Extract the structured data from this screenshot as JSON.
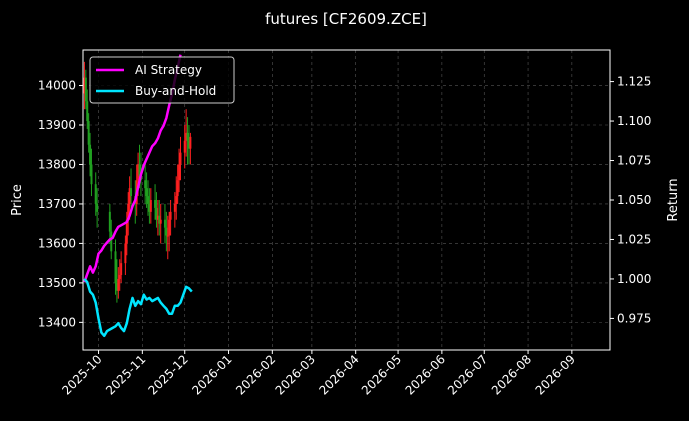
{
  "chart_data": {
    "type": "line",
    "title": "futures [CF2609.ZCE]",
    "xlabel": "",
    "ylabel_left": "Price",
    "ylabel_right": "Return",
    "x_ticks": [
      "2025-10",
      "2025-11",
      "2025-12",
      "2026-01",
      "2026-02",
      "2026-03",
      "2026-04",
      "2026-05",
      "2026-06",
      "2026-07",
      "2026-08",
      "2026-09"
    ],
    "xlim": [
      "2025-09-20",
      "2026-09-28"
    ],
    "ylim_price": [
      13330,
      14090
    ],
    "ylim_return": [
      0.955,
      1.145
    ],
    "y_ticks_price": [
      "13400",
      "13500",
      "13600",
      "13700",
      "13800",
      "13900",
      "14000"
    ],
    "y_ticks_return": [
      "0.975",
      "1.000",
      "1.025",
      "1.050",
      "1.075",
      "1.100",
      "1.125"
    ],
    "grid": true,
    "legend_position": "top-left",
    "colors": {
      "background": "#000000",
      "up": "#ff2020",
      "down": "#20a020",
      "ai_strategy": "#ff00ff",
      "buy_and_hold": "#00e5ff",
      "grid": "#555555"
    },
    "series": [
      {
        "name": "AI Strategy",
        "axis": "right",
        "x": [
          "2025-09-21",
          "2025-09-23",
          "2025-09-25",
          "2025-09-27",
          "2025-09-29",
          "2025-10-01",
          "2025-10-03",
          "2025-10-05",
          "2025-10-07",
          "2025-10-09",
          "2025-10-11",
          "2025-10-13",
          "2025-10-15",
          "2025-10-17",
          "2025-10-19",
          "2025-10-21",
          "2025-10-23",
          "2025-10-25",
          "2025-10-27",
          "2025-10-29",
          "2025-10-31",
          "2025-11-02",
          "2025-11-04",
          "2025-11-06",
          "2025-11-08",
          "2025-11-10",
          "2025-11-12",
          "2025-11-14",
          "2025-11-16",
          "2025-11-18",
          "2025-11-20",
          "2025-11-22",
          "2025-11-24",
          "2025-11-26",
          "2025-11-28"
        ],
        "values": [
          0.998,
          1.003,
          1.008,
          1.004,
          1.008,
          1.016,
          1.018,
          1.021,
          1.023,
          1.025,
          1.026,
          1.03,
          1.033,
          1.034,
          1.035,
          1.036,
          1.04,
          1.046,
          1.05,
          1.058,
          1.066,
          1.072,
          1.076,
          1.08,
          1.084,
          1.086,
          1.089,
          1.094,
          1.097,
          1.102,
          1.11,
          1.117,
          1.126,
          1.134,
          1.142
        ]
      },
      {
        "name": "Buy-and-Hold",
        "axis": "right",
        "x": [
          "2025-09-21",
          "2025-09-23",
          "2025-09-25",
          "2025-09-27",
          "2025-09-29",
          "2025-10-01",
          "2025-10-03",
          "2025-10-05",
          "2025-10-07",
          "2025-10-09",
          "2025-10-11",
          "2025-10-13",
          "2025-10-15",
          "2025-10-17",
          "2025-10-19",
          "2025-10-21",
          "2025-10-23",
          "2025-10-25",
          "2025-10-27",
          "2025-10-29",
          "2025-10-31",
          "2025-11-02",
          "2025-11-04",
          "2025-11-06",
          "2025-11-08",
          "2025-11-10",
          "2025-11-12",
          "2025-11-14",
          "2025-11-16",
          "2025-11-18",
          "2025-11-20",
          "2025-11-22",
          "2025-11-24",
          "2025-11-26",
          "2025-11-28",
          "2025-11-30",
          "2025-12-02",
          "2025-12-04",
          "2025-12-06"
        ],
        "values": [
          1.0,
          0.998,
          0.992,
          0.99,
          0.985,
          0.975,
          0.966,
          0.964,
          0.967,
          0.968,
          0.969,
          0.97,
          0.972,
          0.969,
          0.967,
          0.972,
          0.981,
          0.988,
          0.983,
          0.986,
          0.984,
          0.99,
          0.987,
          0.988,
          0.986,
          0.987,
          0.988,
          0.985,
          0.983,
          0.981,
          0.978,
          0.978,
          0.983,
          0.983,
          0.985,
          0.99,
          0.995,
          0.994,
          0.992
        ]
      },
      {
        "name": "Price",
        "kind": "candlestick",
        "axis": "left",
        "x": [
          "2025-09-21",
          "2025-09-22",
          "2025-09-23",
          "2025-09-24",
          "2025-09-25",
          "2025-09-26",
          "2025-09-29",
          "2025-09-30",
          "2025-10-09",
          "2025-10-10",
          "2025-10-13",
          "2025-10-14",
          "2025-10-15",
          "2025-10-16",
          "2025-10-17",
          "2025-10-20",
          "2025-10-21",
          "2025-10-22",
          "2025-10-23",
          "2025-10-24",
          "2025-10-27",
          "2025-10-28",
          "2025-10-29",
          "2025-10-30",
          "2025-10-31",
          "2025-11-03",
          "2025-11-04",
          "2025-11-05",
          "2025-11-06",
          "2025-11-07",
          "2025-11-10",
          "2025-11-11",
          "2025-11-12",
          "2025-11-13",
          "2025-11-14",
          "2025-11-17",
          "2025-11-18",
          "2025-11-19",
          "2025-11-20",
          "2025-11-21",
          "2025-11-24",
          "2025-11-25",
          "2025-11-26",
          "2025-11-27",
          "2025-11-28",
          "2025-12-01",
          "2025-12-02",
          "2025-12-03",
          "2025-12-04",
          "2025-12-05"
        ],
        "open": [
          13980,
          14020,
          13960,
          13910,
          13850,
          13800,
          13750,
          13700,
          13680,
          13630,
          13580,
          13500,
          13480,
          13510,
          13520,
          13550,
          13600,
          13660,
          13700,
          13740,
          13720,
          13700,
          13760,
          13800,
          13770,
          13760,
          13740,
          13720,
          13700,
          13680,
          13710,
          13690,
          13660,
          13670,
          13650,
          13660,
          13640,
          13620,
          13620,
          13660,
          13680,
          13700,
          13720,
          13760,
          13800,
          13830,
          13860,
          13880,
          13860,
          13840
        ],
        "high": [
          14060,
          14040,
          13990,
          13930,
          13880,
          13840,
          13780,
          13740,
          13700,
          13660,
          13610,
          13560,
          13540,
          13560,
          13580,
          13620,
          13680,
          13730,
          13770,
          13790,
          13760,
          13800,
          13830,
          13850,
          13830,
          13800,
          13780,
          13760,
          13740,
          13740,
          13750,
          13730,
          13710,
          13710,
          13700,
          13700,
          13680,
          13670,
          13680,
          13710,
          13730,
          13770,
          13800,
          13840,
          13870,
          13900,
          13940,
          13920,
          13900,
          13880
        ],
        "low": [
          13940,
          13940,
          13890,
          13830,
          13770,
          13720,
          13670,
          13640,
          13600,
          13560,
          13470,
          13450,
          13460,
          13480,
          13500,
          13520,
          13570,
          13620,
          13660,
          13680,
          13650,
          13670,
          13720,
          13740,
          13720,
          13700,
          13690,
          13670,
          13650,
          13650,
          13660,
          13640,
          13620,
          13620,
          13600,
          13600,
          13580,
          13560,
          13580,
          13620,
          13640,
          13660,
          13700,
          13730,
          13760,
          13790,
          13820,
          13800,
          13800,
          13800
        ],
        "close": [
          14020,
          13960,
          13910,
          13850,
          13800,
          13750,
          13700,
          13680,
          13630,
          13580,
          13500,
          13480,
          13510,
          13520,
          13550,
          13600,
          13660,
          13700,
          13740,
          13720,
          13700,
          13760,
          13800,
          13770,
          13760,
          13740,
          13720,
          13700,
          13680,
          13710,
          13690,
          13660,
          13670,
          13650,
          13660,
          13640,
          13620,
          13620,
          13660,
          13680,
          13700,
          13720,
          13760,
          13800,
          13830,
          13860,
          13880,
          13860,
          13840,
          13870
        ]
      }
    ]
  }
}
